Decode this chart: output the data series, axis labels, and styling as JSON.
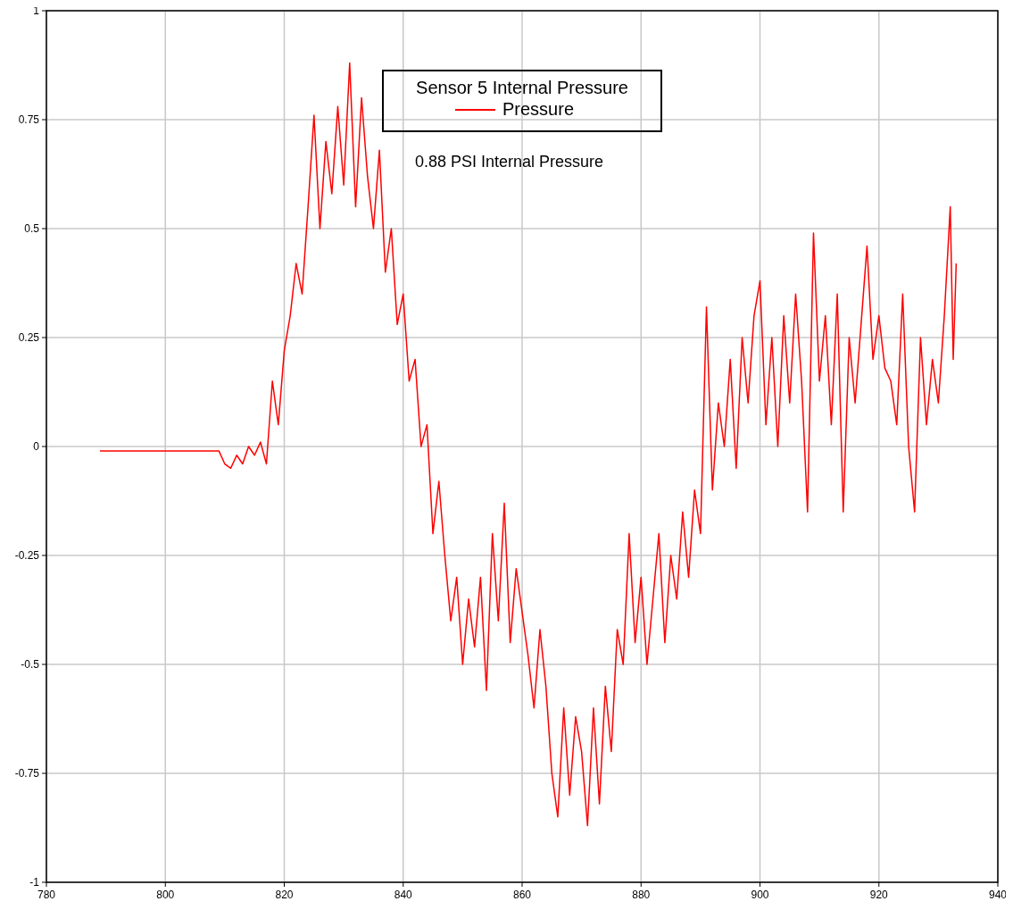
{
  "chart_data": {
    "type": "line",
    "legend_title": "Sensor 5 Internal Pressure",
    "annotations": [
      "0.88 PSI Internal Pressure"
    ],
    "xlim": [
      780,
      940
    ],
    "xticks": [
      780,
      800,
      820,
      840,
      860,
      880,
      900,
      920,
      940
    ],
    "ylim": [
      -1,
      1
    ],
    "yticks": [
      -1,
      -0.75,
      -0.5,
      -0.25,
      0,
      0.25,
      0.5,
      0.75,
      1
    ],
    "grid": true,
    "legend": "top",
    "marker": "none",
    "line_style": "solid",
    "series": [
      {
        "name": "Pressure",
        "color": "#ff0000",
        "x": [
          789,
          792,
          795,
          798,
          801,
          804,
          807,
          809,
          810,
          811,
          812,
          813,
          814,
          815,
          816,
          817,
          818,
          819,
          820,
          821,
          822,
          823,
          824,
          825,
          826,
          827,
          828,
          829,
          830,
          831,
          832,
          833,
          834,
          835,
          836,
          837,
          838,
          839,
          840,
          841,
          842,
          843,
          844,
          845,
          846,
          847,
          848,
          849,
          850,
          851,
          852,
          853,
          854,
          855,
          856,
          857,
          858,
          859,
          860,
          861,
          862,
          863,
          864,
          865,
          866,
          867,
          868,
          869,
          870,
          871,
          872,
          873,
          874,
          875,
          876,
          877,
          878,
          879,
          880,
          881,
          882,
          883,
          884,
          885,
          886,
          887,
          888,
          889,
          890,
          891,
          892,
          893,
          894,
          895,
          896,
          897,
          898,
          899,
          900,
          901,
          902,
          903,
          904,
          905,
          906,
          907,
          908,
          909,
          910,
          911,
          912,
          913,
          914,
          915,
          916,
          917,
          918,
          919,
          920,
          921,
          922,
          923,
          924,
          925,
          926,
          927,
          928,
          929,
          930,
          931,
          932,
          932.5,
          933
        ],
        "values": [
          -0.01,
          -0.01,
          -0.01,
          -0.01,
          -0.01,
          -0.01,
          -0.01,
          -0.01,
          -0.04,
          -0.05,
          -0.02,
          -0.04,
          0,
          -0.02,
          0.01,
          -0.04,
          0.15,
          0.05,
          0.22,
          0.3,
          0.42,
          0.35,
          0.55,
          0.76,
          0.5,
          0.7,
          0.58,
          0.78,
          0.6,
          0.88,
          0.55,
          0.8,
          0.62,
          0.5,
          0.68,
          0.4,
          0.5,
          0.28,
          0.35,
          0.15,
          0.2,
          0.0,
          0.05,
          -0.2,
          -0.08,
          -0.25,
          -0.4,
          -0.3,
          -0.5,
          -0.35,
          -0.46,
          -0.3,
          -0.56,
          -0.2,
          -0.4,
          -0.13,
          -0.45,
          -0.28,
          -0.38,
          -0.48,
          -0.6,
          -0.42,
          -0.55,
          -0.75,
          -0.85,
          -0.6,
          -0.8,
          -0.62,
          -0.7,
          -0.87,
          -0.6,
          -0.82,
          -0.55,
          -0.7,
          -0.42,
          -0.5,
          -0.2,
          -0.45,
          -0.3,
          -0.5,
          -0.35,
          -0.2,
          -0.45,
          -0.25,
          -0.35,
          -0.15,
          -0.3,
          -0.1,
          -0.2,
          0.32,
          -0.1,
          0.1,
          0.0,
          0.2,
          -0.05,
          0.25,
          0.1,
          0.3,
          0.38,
          0.05,
          0.25,
          0.0,
          0.3,
          0.1,
          0.35,
          0.15,
          -0.15,
          0.49,
          0.15,
          0.3,
          0.05,
          0.35,
          -0.15,
          0.25,
          0.1,
          0.28,
          0.46,
          0.2,
          0.3,
          0.18,
          0.15,
          0.05,
          0.35,
          0.0,
          -0.15,
          0.25,
          0.05,
          0.2,
          0.1,
          0.3,
          0.55,
          0.2,
          0.42
        ]
      }
    ]
  }
}
